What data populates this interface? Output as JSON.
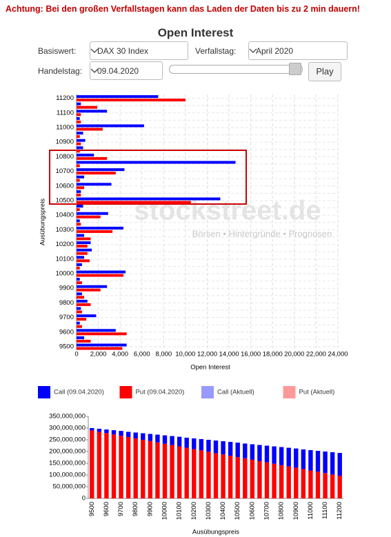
{
  "warning": "Achtung: Bei den großen Verfallstagen kann das Laden der Daten bis zu 2 min dauern!",
  "title": "Open Interest",
  "controls": {
    "basiswert_label": "Basiswert:",
    "basiswert": "DAX 30 Index",
    "verfallstag_label": "Verfallstag:",
    "verfallstag": "April 2020",
    "handelstag_label": "Handelstag:",
    "handelstag": "09.04.2020",
    "play": "Play"
  },
  "watermark": {
    "text": "stockstreet.de",
    "tagline": "Börsen • Hintergründe • Prognosen"
  },
  "chart_data": [
    {
      "type": "bar",
      "orientation": "horizontal",
      "x_label": "Open Interest",
      "y_label": "Ausübungspreis",
      "categories": [
        "9500",
        null,
        "9600",
        null,
        "9700",
        null,
        "9800",
        null,
        "9900",
        null,
        "10000",
        null,
        "10100",
        null,
        "10200",
        null,
        "10300",
        null,
        "10400",
        null,
        "10500",
        null,
        "10600",
        null,
        "10700",
        null,
        "10800",
        null,
        "10900",
        null,
        "11000",
        null,
        "11100",
        null,
        "11200"
      ],
      "series": [
        {
          "name": "Call (09.04.2020)",
          "color": "#0000ff",
          "values": [
            4600,
            700,
            3600,
            300,
            1800,
            400,
            1000,
            500,
            2800,
            300,
            4500,
            500,
            700,
            1400,
            1300,
            700,
            4300,
            300,
            2900,
            600,
            13200,
            400,
            3200,
            700,
            4400,
            14600,
            1600,
            600,
            800,
            600,
            6200,
            300,
            2800,
            400,
            7500
          ]
        },
        {
          "name": "Put (09.04.2020)",
          "color": "#ff0000",
          "values": [
            4200,
            1300,
            4600,
            500,
            900,
            500,
            1300,
            700,
            2200,
            500,
            4300,
            300,
            1200,
            1000,
            1000,
            1300,
            3300,
            400,
            2200,
            300,
            10500,
            400,
            700,
            300,
            3600,
            300,
            2800,
            300,
            400,
            300,
            2400,
            400,
            400,
            1900,
            10000
          ]
        },
        {
          "name": "Call (Aktuell)",
          "color": "#9999ff"
        },
        {
          "name": "Put (Aktuell)",
          "color": "#ff9999"
        }
      ],
      "xlim": [
        0,
        24000
      ],
      "xticks": [
        0,
        {
          "value": 2000,
          "label": "2,000"
        },
        {
          "value": 4000,
          "label": "4,000"
        },
        {
          "value": 6000,
          "label": "6,000"
        },
        {
          "value": 8000,
          "label": "8,000"
        },
        {
          "value": 10000,
          "label": "10,000"
        },
        {
          "value": 12000,
          "label": "12,000"
        },
        {
          "value": 14000,
          "label": "14,000"
        },
        {
          "value": 16000,
          "label": "16,000"
        },
        {
          "value": 18000,
          "label": "18,000"
        },
        {
          "value": 20000,
          "label": "20,000"
        },
        {
          "value": 22000,
          "label": "22,000"
        },
        {
          "value": 24000,
          "label": "24,000"
        }
      ],
      "grid": true,
      "legend": "bottom"
    },
    {
      "type": "bar",
      "stacked": true,
      "x_label": "Ausübungspreis",
      "categories": [
        "9500",
        null,
        "9600",
        null,
        "9700",
        null,
        "9800",
        null,
        "9900",
        null,
        "10000",
        null,
        "10100",
        null,
        "10200",
        null,
        "10300",
        null,
        "10400",
        null,
        "10500",
        null,
        "10600",
        null,
        "10700",
        null,
        "10800",
        null,
        "10900",
        null,
        "11000",
        null,
        "11100",
        null,
        "11200"
      ],
      "series": [
        {
          "color": "#ff0000",
          "values": [
            290000000,
            284000000,
            279000000,
            273000000,
            267000000,
            262000000,
            256000000,
            250000000,
            245000000,
            239000000,
            233000000,
            228000000,
            222000000,
            216000000,
            210000000,
            205000000,
            199000000,
            193000000,
            188000000,
            182000000,
            176000000,
            171000000,
            165000000,
            159000000,
            154000000,
            148000000,
            142000000,
            137000000,
            131000000,
            125000000,
            119000000,
            114000000,
            108000000,
            102000000,
            97000000
          ]
        },
        {
          "color": "#0000ff",
          "values": [
            10000000,
            13000000,
            15000000,
            18000000,
            21000000,
            22000000,
            25000000,
            28000000,
            30000000,
            33000000,
            36000000,
            38000000,
            41000000,
            43000000,
            46000000,
            48000000,
            51000000,
            54000000,
            56000000,
            59000000,
            62000000,
            63000000,
            66000000,
            69000000,
            71000000,
            74000000,
            77000000,
            79000000,
            82000000,
            84000000,
            87000000,
            89000000,
            92000000,
            95000000,
            97000000
          ]
        }
      ],
      "ylim": [
        0,
        350000000
      ],
      "yticks": [
        0,
        {
          "value": 50000000,
          "label": "50,000,000"
        },
        {
          "value": 100000000,
          "label": "100,000,000"
        },
        {
          "value": 150000000,
          "label": "150,000,000"
        },
        {
          "value": 200000000,
          "label": "200,000,000"
        },
        {
          "value": 250000000,
          "label": "250,000,000"
        },
        {
          "value": 300000000,
          "label": "300,000,000"
        },
        {
          "value": 350000000,
          "label": "350,000,000"
        }
      ],
      "grid": false
    }
  ]
}
